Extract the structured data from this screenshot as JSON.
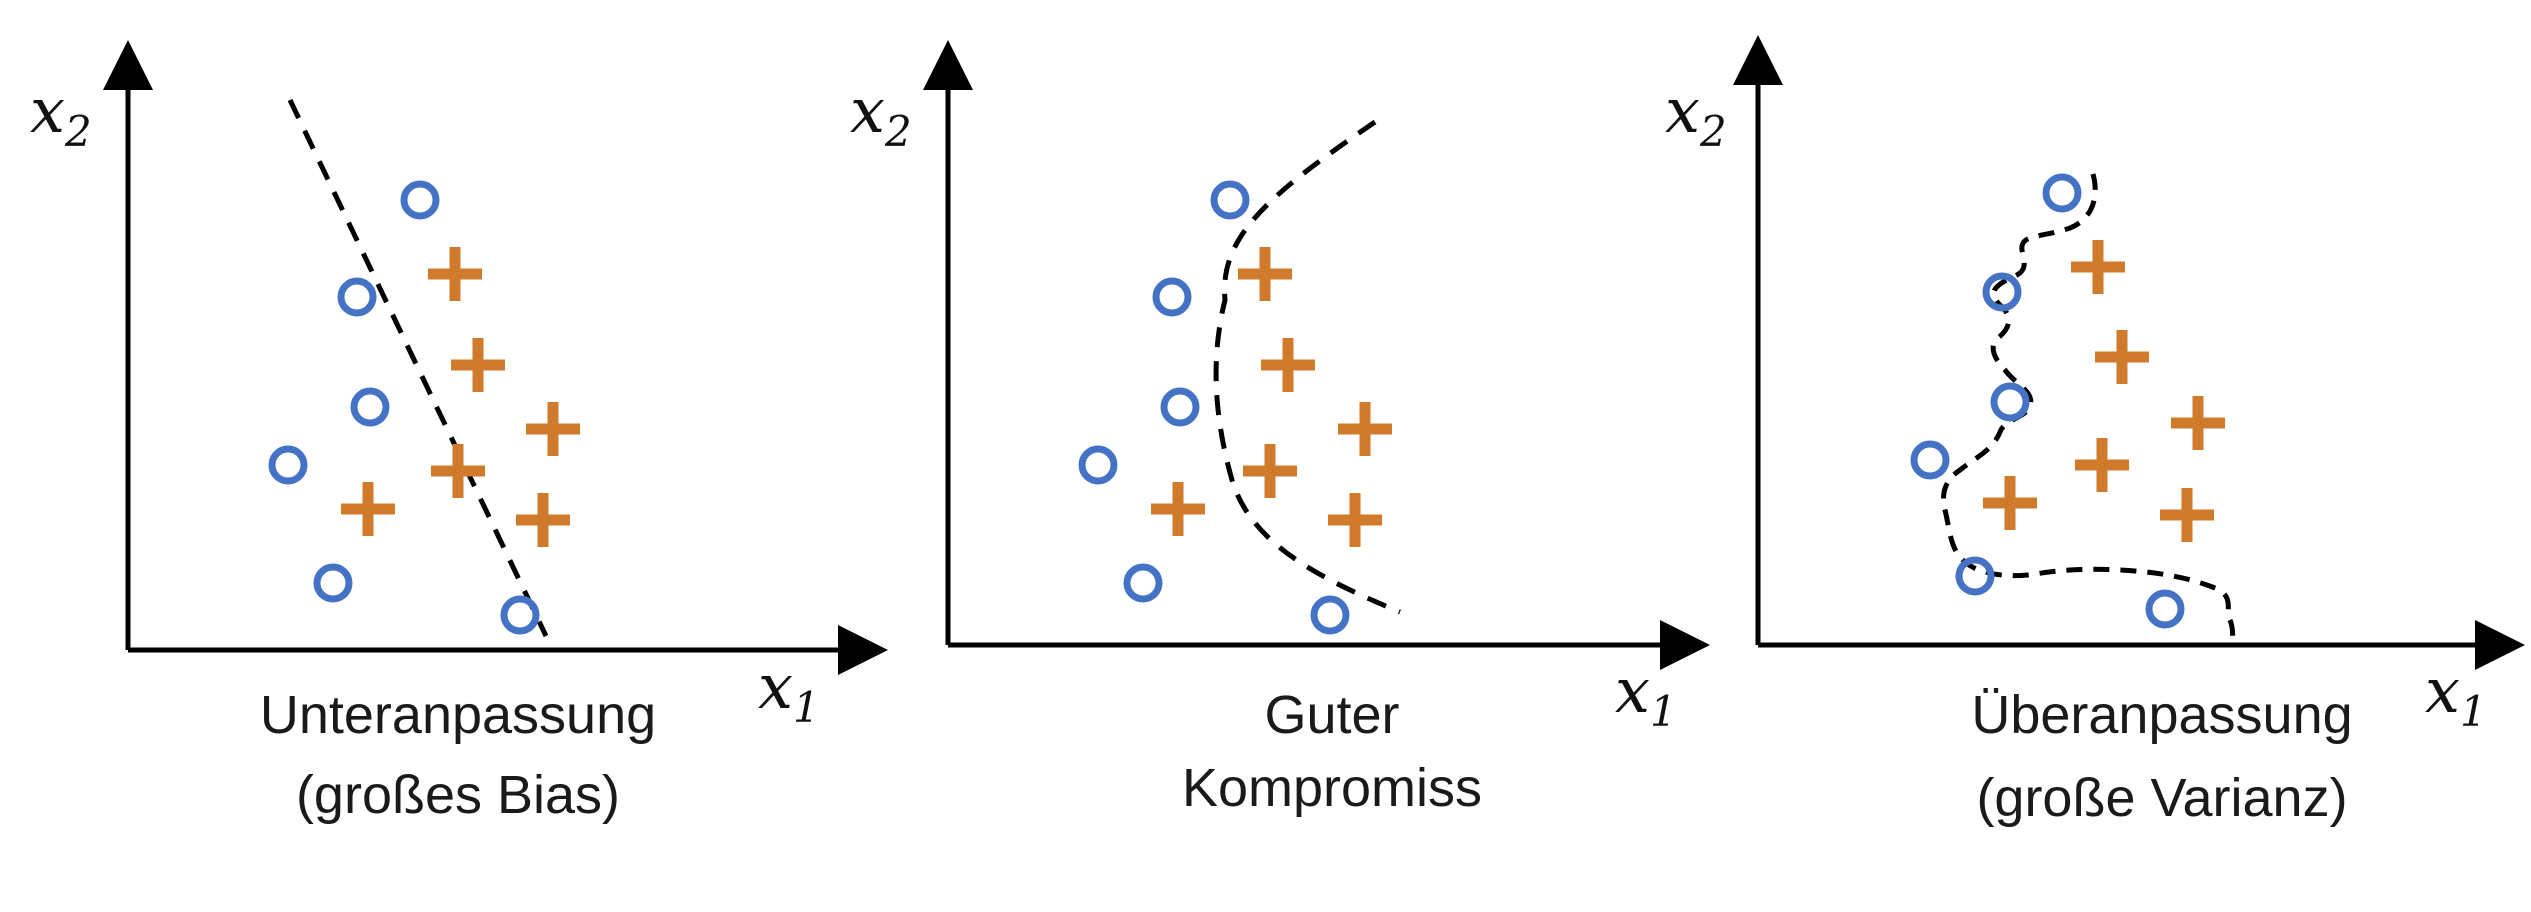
{
  "panels": [
    {
      "id": "underfit",
      "caption_line1": "Unteranpassung",
      "caption_line2": "(großes Bias)"
    },
    {
      "id": "compromise",
      "caption_line1": "Guter",
      "caption_line2": "Kompromiss"
    },
    {
      "id": "overfit",
      "caption_line1": "Überanpassung",
      "caption_line2": "(große Varianz)"
    }
  ],
  "axes": {
    "x_label": "x",
    "x_subscript": "1",
    "y_label": "x",
    "y_subscript": "2"
  },
  "colors": {
    "circle_class": "#4472C4",
    "plus_class": "#D07A2C",
    "axis": "#000000",
    "boundary": "#000000"
  },
  "markers": {
    "circle_icon": "circle-outline-icon",
    "plus_icon": "plus-icon"
  }
}
